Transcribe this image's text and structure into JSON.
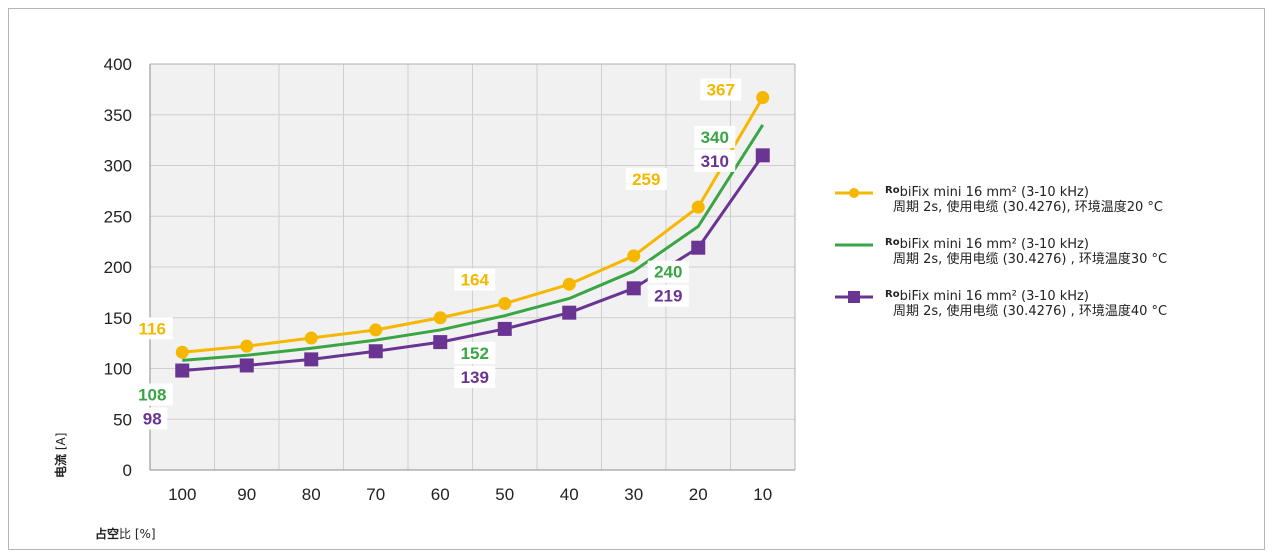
{
  "chart_data": {
    "type": "line",
    "categories": [
      "100",
      "90",
      "80",
      "70",
      "60",
      "50",
      "40",
      "30",
      "20",
      "10"
    ],
    "yticks": [
      "0",
      "50",
      "100",
      "150",
      "200",
      "250",
      "300",
      "350",
      "400"
    ],
    "ylim": [
      0,
      400
    ],
    "grid": true,
    "legend_placement": "right",
    "ylabel_bold": "电流",
    "ylabel_rest": " [A]",
    "xlabel_bold": "占空",
    "xlabel_rest": "比 [%]",
    "series": [
      {
        "color": "#F6B700",
        "marker": "circle",
        "name_prefix": "Ro",
        "name_line1": "biFix mini 16 mm² (3-10 kHz)",
        "name_line2": "周期 2s, 使用电缆 (30.4276), 环境温度20 °C",
        "values": [
          116,
          122,
          130,
          138,
          150,
          164,
          183,
          211,
          259,
          367
        ]
      },
      {
        "color": "#3AA545",
        "marker": "none",
        "name_prefix": "Ro",
        "name_line1": "biFix mini 16 mm² (3-10 kHz)",
        "name_line2": "周期 2s, 使用电缆 (30.4276) , 环境温度30 °C",
        "values": [
          108,
          113,
          120,
          128,
          138,
          152,
          169,
          196,
          240,
          340
        ]
      },
      {
        "color": "#6A3493",
        "marker": "square",
        "name_prefix": "Ro",
        "name_line1": "biFix mini 16 mm² (3-10 kHz)",
        "name_line2": "周期 2s, 使用电缆 (30.4276) , 环境温度40 °C",
        "values": [
          98,
          103,
          109,
          117,
          126,
          139,
          155,
          179,
          219,
          310
        ]
      }
    ],
    "data_labels": [
      {
        "series": 0,
        "text": "116",
        "anchor_index": 0,
        "pos": "above-left"
      },
      {
        "series": 1,
        "text": "108",
        "anchor_index": 0,
        "pos": "below-1"
      },
      {
        "series": 2,
        "text": "98",
        "anchor_index": 0,
        "pos": "below-2"
      },
      {
        "series": 0,
        "text": "164",
        "anchor_index": 5,
        "pos": "above-left"
      },
      {
        "series": 1,
        "text": "152",
        "anchor_index": 5,
        "pos": "below-1"
      },
      {
        "series": 2,
        "text": "139",
        "anchor_index": 5,
        "pos": "below-2"
      },
      {
        "series": 0,
        "text": "259",
        "anchor_index": 8,
        "pos": "left-high"
      },
      {
        "series": 1,
        "text": "240",
        "anchor_index": 8,
        "pos": "below-1"
      },
      {
        "series": 2,
        "text": "219",
        "anchor_index": 8,
        "pos": "below-2"
      },
      {
        "series": 0,
        "text": "367",
        "anchor_index": 9,
        "pos": "left-top"
      },
      {
        "series": 1,
        "text": "340",
        "anchor_index": 9,
        "pos": "mid-1"
      },
      {
        "series": 2,
        "text": "310",
        "anchor_index": 9,
        "pos": "mid-2"
      }
    ]
  }
}
